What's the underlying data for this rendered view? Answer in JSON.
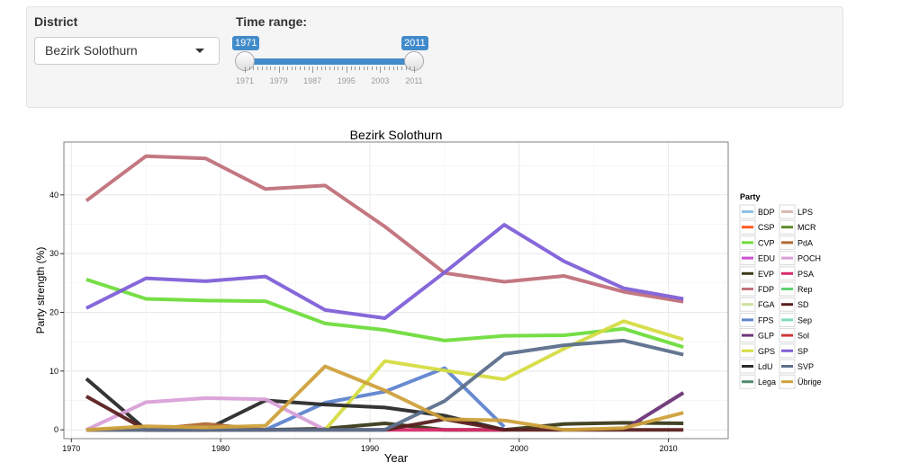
{
  "controls": {
    "district_label": "District",
    "district_value": "Bezirk Solothurn",
    "time_label": "Time range:",
    "slider": {
      "min": 1971,
      "max": 2011,
      "from": 1971,
      "to": 2011,
      "tick_labels": [
        "1971",
        "1979",
        "1987",
        "1995",
        "2003",
        "2011"
      ]
    }
  },
  "chart_data": {
    "type": "line",
    "title": "Bezirk Solothurn",
    "xlabel": "Year",
    "ylabel": "Party strength (%)",
    "xlim": [
      1969.5,
      2014
    ],
    "ylim": [
      -1.5,
      49
    ],
    "x_ticks": [
      1970,
      1980,
      1990,
      2000,
      2010
    ],
    "y_ticks": [
      0,
      10,
      20,
      30,
      40
    ],
    "grid": true,
    "legend_title": "Party",
    "legend_position": "right",
    "x": [
      1971,
      1975,
      1979,
      1983,
      1987,
      1991,
      1995,
      1999,
      2003,
      2007,
      2011
    ],
    "series": [
      {
        "name": "BDP",
        "color": "#8ec0e6",
        "values": [
          null,
          null,
          null,
          null,
          null,
          null,
          null,
          null,
          null,
          null,
          null
        ]
      },
      {
        "name": "CSP",
        "color": "#ff5a1f",
        "values": [
          null,
          null,
          null,
          null,
          null,
          null,
          null,
          null,
          null,
          null,
          null
        ]
      },
      {
        "name": "CVP",
        "color": "#6fdc3c",
        "values": [
          25.6,
          22.3,
          22.0,
          21.9,
          18.1,
          17.0,
          15.2,
          16.0,
          16.1,
          17.2,
          14.1
        ]
      },
      {
        "name": "EDU",
        "color": "#cf4fd0",
        "values": [
          null,
          null,
          null,
          null,
          null,
          null,
          null,
          null,
          null,
          null,
          null
        ]
      },
      {
        "name": "EVP",
        "color": "#3a3a1a",
        "values": [
          0,
          0,
          0,
          0,
          0.2,
          1.1,
          0,
          0,
          1.0,
          1.2,
          1.1
        ]
      },
      {
        "name": "FDP",
        "color": "#c0717a",
        "values": [
          39.0,
          46.6,
          46.2,
          41.0,
          41.6,
          34.6,
          26.7,
          25.2,
          26.2,
          23.5,
          21.8
        ]
      },
      {
        "name": "FGA",
        "color": "#cde0a0",
        "values": [
          null,
          null,
          null,
          null,
          null,
          null,
          null,
          null,
          null,
          null,
          null
        ]
      },
      {
        "name": "FPS",
        "color": "#5f84cf",
        "values": [
          null,
          null,
          null,
          0,
          4.6,
          6.5,
          10.5,
          0.5,
          null,
          null,
          null
        ]
      },
      {
        "name": "GLP",
        "color": "#6b3578",
        "values": [
          null,
          null,
          null,
          null,
          null,
          null,
          null,
          null,
          null,
          0,
          6.3
        ]
      },
      {
        "name": "GPS",
        "color": "#d6dc42",
        "values": [
          null,
          null,
          null,
          null,
          0,
          11.7,
          10.1,
          8.6,
          13.8,
          18.5,
          15.4
        ]
      },
      {
        "name": "LdU",
        "color": "#2a2a2a",
        "values": [
          8.7,
          0,
          0,
          5.0,
          4.3,
          3.8,
          2.4,
          0,
          null,
          null,
          null
        ]
      },
      {
        "name": "Lega",
        "color": "#4f8a6a",
        "values": [
          null,
          null,
          null,
          null,
          null,
          null,
          null,
          null,
          null,
          null,
          null
        ]
      },
      {
        "name": "LPS",
        "color": "#d9b8b0",
        "values": [
          null,
          null,
          null,
          null,
          null,
          null,
          null,
          null,
          null,
          null,
          null
        ]
      },
      {
        "name": "MCR",
        "color": "#5c8a2c",
        "values": [
          null,
          null,
          null,
          null,
          null,
          null,
          null,
          null,
          null,
          null,
          null
        ]
      },
      {
        "name": "PdA",
        "color": "#b06a36",
        "values": [
          0,
          0,
          1.0,
          0,
          null,
          null,
          null,
          null,
          null,
          null,
          null
        ]
      },
      {
        "name": "POCH",
        "color": "#d9a0d8",
        "values": [
          0,
          4.7,
          5.4,
          5.2,
          0,
          null,
          null,
          null,
          null,
          null,
          null
        ]
      },
      {
        "name": "PSA",
        "color": "#d62d6a",
        "values": [
          null,
          null,
          null,
          null,
          null,
          0,
          0,
          0,
          null,
          null,
          null
        ]
      },
      {
        "name": "Rep",
        "color": "#5fd272",
        "values": [
          null,
          null,
          null,
          null,
          null,
          null,
          null,
          null,
          null,
          null,
          null
        ]
      },
      {
        "name": "SD",
        "color": "#5a1f1f",
        "values": [
          5.7,
          0,
          0,
          0,
          0,
          0,
          1.8,
          0,
          0,
          0,
          0
        ]
      },
      {
        "name": "Sep",
        "color": "#7fdcbc",
        "values": [
          null,
          null,
          null,
          null,
          null,
          null,
          null,
          null,
          null,
          null,
          null
        ]
      },
      {
        "name": "Sol",
        "color": "#cc3a3a",
        "values": [
          null,
          null,
          null,
          null,
          null,
          null,
          null,
          null,
          null,
          null,
          null
        ]
      },
      {
        "name": "SP",
        "color": "#8060d8",
        "values": [
          20.7,
          25.8,
          25.3,
          26.1,
          20.4,
          19.0,
          26.8,
          34.9,
          28.7,
          24.1,
          22.3
        ]
      },
      {
        "name": "SVP",
        "color": "#5c6f8c",
        "values": [
          0,
          0,
          0,
          0,
          0,
          0,
          4.9,
          12.9,
          14.4,
          15.2,
          12.8
        ]
      },
      {
        "name": "Übrige",
        "color": "#cfa13c",
        "values": [
          0,
          0.6,
          0.4,
          0.7,
          10.8,
          6.7,
          1.8,
          1.6,
          0,
          0.3,
          2.9
        ]
      }
    ]
  }
}
